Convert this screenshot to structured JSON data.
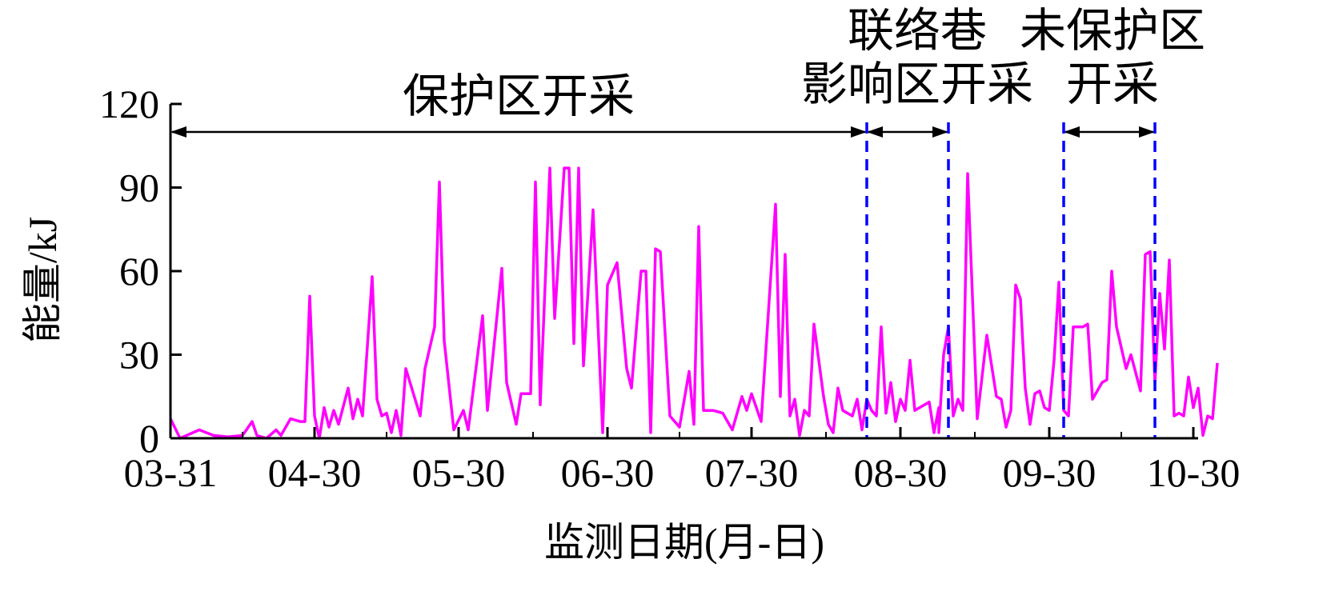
{
  "chart_data": {
    "type": "line",
    "xlabel": "监测日期(月-日)",
    "ylabel": "能量/kJ",
    "ylim": [
      0,
      120
    ],
    "yticks": [
      "0",
      "30",
      "60",
      "90",
      "120"
    ],
    "xlim": [
      "2020-03-31",
      "2020-10-30"
    ],
    "xticks": [
      {
        "date": "2020-03-31",
        "label": "03-31"
      },
      {
        "date": "2020-04-30",
        "label": "04-30"
      },
      {
        "date": "2020-05-30",
        "label": "05-30"
      },
      {
        "date": "2020-06-30",
        "label": "06-30"
      },
      {
        "date": "2020-07-30",
        "label": "07-30"
      },
      {
        "date": "2020-08-30",
        "label": "08-30"
      },
      {
        "date": "2020-09-30",
        "label": "09-30"
      },
      {
        "date": "2020-10-30",
        "label": "10-30"
      }
    ],
    "line_color": "#ff00ff",
    "boundary_color": "#0000ff",
    "boundaries": [
      "2020-08-23",
      "2020-09-09",
      "2020-10-03",
      "2020-10-22"
    ],
    "zones": [
      {
        "label_lines": [
          "保护区开采"
        ],
        "start": "2020-03-31",
        "end": "2020-08-23"
      },
      {
        "label_lines": [
          "联络巷",
          "影响区开采"
        ],
        "start": "2020-08-23",
        "end": "2020-09-09"
      },
      {
        "label_lines": [
          "未保护区",
          "开采"
        ],
        "start": "2020-10-03",
        "end": "2020-10-22"
      }
    ],
    "points": [
      [
        "2020-03-31",
        7
      ],
      [
        "2020-04-02",
        0
      ],
      [
        "2020-04-06",
        3
      ],
      [
        "2020-04-09",
        1
      ],
      [
        "2020-04-12",
        0.5
      ],
      [
        "2020-04-15",
        1
      ],
      [
        "2020-04-17",
        6
      ],
      [
        "2020-04-18",
        1
      ],
      [
        "2020-04-20",
        0
      ],
      [
        "2020-04-22",
        3
      ],
      [
        "2020-04-23",
        1
      ],
      [
        "2020-04-25",
        7
      ],
      [
        "2020-04-27",
        6
      ],
      [
        "2020-04-28",
        6
      ],
      [
        "2020-04-29",
        51
      ],
      [
        "2020-04-30",
        8
      ],
      [
        "2020-05-01",
        0
      ],
      [
        "2020-05-02",
        11
      ],
      [
        "2020-05-03",
        4
      ],
      [
        "2020-05-04",
        10
      ],
      [
        "2020-05-05",
        5
      ],
      [
        "2020-05-07",
        18
      ],
      [
        "2020-05-08",
        7
      ],
      [
        "2020-05-09",
        14
      ],
      [
        "2020-05-10",
        8
      ],
      [
        "2020-05-12",
        58
      ],
      [
        "2020-05-13",
        14
      ],
      [
        "2020-05-14",
        8
      ],
      [
        "2020-05-15",
        9
      ],
      [
        "2020-05-16",
        2
      ],
      [
        "2020-05-17",
        10
      ],
      [
        "2020-05-18",
        1
      ],
      [
        "2020-05-19",
        25
      ],
      [
        "2020-05-22",
        8
      ],
      [
        "2020-05-23",
        25
      ],
      [
        "2020-05-25",
        40
      ],
      [
        "2020-05-26",
        92
      ],
      [
        "2020-05-27",
        35
      ],
      [
        "2020-05-29",
        3
      ],
      [
        "2020-05-31",
        10
      ],
      [
        "2020-06-01",
        3
      ],
      [
        "2020-06-04",
        44
      ],
      [
        "2020-06-05",
        10
      ],
      [
        "2020-06-08",
        61
      ],
      [
        "2020-06-09",
        20
      ],
      [
        "2020-06-11",
        5
      ],
      [
        "2020-06-12",
        16
      ],
      [
        "2020-06-14",
        16
      ],
      [
        "2020-06-15",
        92
      ],
      [
        "2020-06-16",
        12
      ],
      [
        "2020-06-18",
        97
      ],
      [
        "2020-06-19",
        43
      ],
      [
        "2020-06-21",
        97
      ],
      [
        "2020-06-22",
        97
      ],
      [
        "2020-06-23",
        34
      ],
      [
        "2020-06-24",
        97
      ],
      [
        "2020-06-25",
        26
      ],
      [
        "2020-06-27",
        82
      ],
      [
        "2020-06-29",
        2
      ],
      [
        "2020-06-30",
        55
      ],
      [
        "2020-07-02",
        63
      ],
      [
        "2020-07-04",
        25
      ],
      [
        "2020-07-05",
        18
      ],
      [
        "2020-07-07",
        60
      ],
      [
        "2020-07-08",
        60
      ],
      [
        "2020-07-09",
        2
      ],
      [
        "2020-07-10",
        68
      ],
      [
        "2020-07-11",
        67
      ],
      [
        "2020-07-13",
        8
      ],
      [
        "2020-07-15",
        4
      ],
      [
        "2020-07-17",
        24
      ],
      [
        "2020-07-18",
        5
      ],
      [
        "2020-07-19",
        76
      ],
      [
        "2020-07-20",
        10
      ],
      [
        "2020-07-22",
        10
      ],
      [
        "2020-07-24",
        9
      ],
      [
        "2020-07-26",
        3
      ],
      [
        "2020-07-28",
        15
      ],
      [
        "2020-07-29",
        10
      ],
      [
        "2020-07-30",
        16
      ],
      [
        "2020-08-01",
        6
      ],
      [
        "2020-08-04",
        84
      ],
      [
        "2020-08-05",
        15
      ],
      [
        "2020-08-06",
        66
      ],
      [
        "2020-08-07",
        8
      ],
      [
        "2020-08-08",
        14
      ],
      [
        "2020-08-09",
        1
      ],
      [
        "2020-08-10",
        10
      ],
      [
        "2020-08-11",
        8
      ],
      [
        "2020-08-12",
        41
      ],
      [
        "2020-08-14",
        15
      ],
      [
        "2020-08-15",
        5
      ],
      [
        "2020-08-16",
        2
      ],
      [
        "2020-08-17",
        18
      ],
      [
        "2020-08-18",
        10
      ],
      [
        "2020-08-20",
        8
      ],
      [
        "2020-08-21",
        14
      ],
      [
        "2020-08-22",
        3
      ],
      [
        "2020-08-23",
        14
      ],
      [
        "2020-08-24",
        10
      ],
      [
        "2020-08-25",
        8
      ],
      [
        "2020-08-26",
        40
      ],
      [
        "2020-08-27",
        9
      ],
      [
        "2020-08-28",
        20
      ],
      [
        "2020-08-29",
        6
      ],
      [
        "2020-08-30",
        14
      ],
      [
        "2020-08-31",
        10
      ],
      [
        "2020-09-01",
        28
      ],
      [
        "2020-09-02",
        10
      ],
      [
        "2020-09-05",
        13
      ],
      [
        "2020-09-06",
        2
      ],
      [
        "2020-09-07",
        11
      ],
      [
        "2020-09-07",
        2
      ],
      [
        "2020-09-08",
        30
      ],
      [
        "2020-09-09",
        40
      ],
      [
        "2020-09-10",
        8
      ],
      [
        "2020-09-11",
        14
      ],
      [
        "2020-09-12",
        10
      ],
      [
        "2020-09-13",
        95
      ],
      [
        "2020-09-15",
        7
      ],
      [
        "2020-09-17",
        37
      ],
      [
        "2020-09-19",
        15
      ],
      [
        "2020-09-20",
        14
      ],
      [
        "2020-09-21",
        4
      ],
      [
        "2020-09-22",
        10
      ],
      [
        "2020-09-23",
        55
      ],
      [
        "2020-09-24",
        50
      ],
      [
        "2020-09-25",
        18
      ],
      [
        "2020-09-26",
        5
      ],
      [
        "2020-09-27",
        16
      ],
      [
        "2020-09-28",
        17
      ],
      [
        "2020-09-29",
        11
      ],
      [
        "2020-09-30",
        10
      ],
      [
        "2020-10-01",
        28
      ],
      [
        "2020-10-02",
        56
      ],
      [
        "2020-10-03",
        10
      ],
      [
        "2020-10-04",
        8
      ],
      [
        "2020-10-05",
        40
      ],
      [
        "2020-10-07",
        40
      ],
      [
        "2020-10-08",
        41
      ],
      [
        "2020-10-09",
        14
      ],
      [
        "2020-10-11",
        20
      ],
      [
        "2020-10-12",
        21
      ],
      [
        "2020-10-13",
        60
      ],
      [
        "2020-10-14",
        40
      ],
      [
        "2020-10-16",
        25
      ],
      [
        "2020-10-17",
        30
      ],
      [
        "2020-10-19",
        17
      ],
      [
        "2020-10-20",
        66
      ],
      [
        "2020-10-21",
        67
      ],
      [
        "2020-10-22",
        20
      ],
      [
        "2020-10-23",
        52
      ],
      [
        "2020-10-24",
        32
      ],
      [
        "2020-10-25",
        64
      ],
      [
        "2020-10-26",
        8
      ],
      [
        "2020-10-27",
        9
      ],
      [
        "2020-10-28",
        8
      ],
      [
        "2020-10-29",
        22
      ],
      [
        "2020-10-30",
        11
      ],
      [
        "2020-10-31",
        18
      ],
      [
        "2020-11-01",
        1
      ],
      [
        "2020-11-02",
        8
      ],
      [
        "2020-11-03",
        7
      ],
      [
        "2020-11-04",
        27
      ]
    ]
  }
}
